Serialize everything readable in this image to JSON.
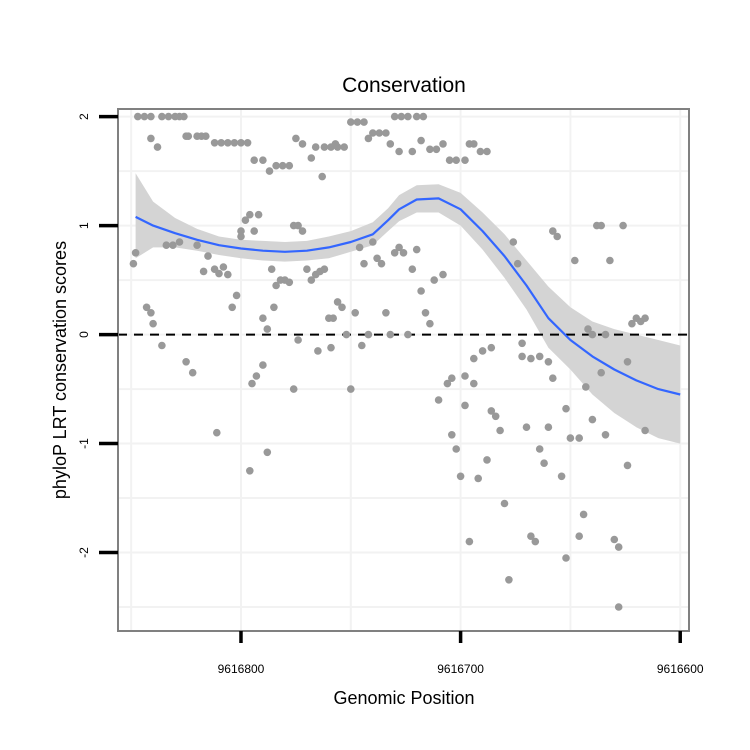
{
  "chart_data": {
    "type": "scatter",
    "title": "Conservation",
    "xlabel": "Genomic Position",
    "ylabel": "phyloP LRT conservation scores",
    "x_reversed": true,
    "xlim": [
      9616856,
      9616596
    ],
    "ylim": [
      -2.72,
      2.07
    ],
    "x_ticks": [
      9616800,
      9616700,
      9616600
    ],
    "x_tick_labels": [
      "9616800",
      "9616700",
      "9616600"
    ],
    "y_ticks": [
      2,
      1,
      0,
      -1,
      -2
    ],
    "y_tick_labels": [
      "2",
      "1",
      "0",
      "-1",
      "-2"
    ],
    "reference_line": {
      "y": 0,
      "style": "dashed"
    },
    "colors": {
      "points": "#999999",
      "smooth": "#3366ff",
      "ribbon": "#d4d4d4",
      "frame": "#808080",
      "grid": "#f2f2f2"
    },
    "series": [
      {
        "name": "scores",
        "kind": "points",
        "points": [
          [
            9616847,
            2.0
          ],
          [
            9616844,
            2.0
          ],
          [
            9616841,
            2.0
          ],
          [
            9616836,
            2.0
          ],
          [
            9616833,
            2.0
          ],
          [
            9616830,
            2.0
          ],
          [
            9616828,
            2.0
          ],
          [
            9616826,
            2.0
          ],
          [
            9616824,
            1.82
          ],
          [
            9616820,
            1.82
          ],
          [
            9616818,
            1.82
          ],
          [
            9616816,
            1.82
          ],
          [
            9616812,
            1.76
          ],
          [
            9616809,
            1.76
          ],
          [
            9616806,
            1.76
          ],
          [
            9616803,
            1.76
          ],
          [
            9616800,
            1.76
          ],
          [
            9616797,
            1.76
          ],
          [
            9616794,
            1.6
          ],
          [
            9616790,
            1.6
          ],
          [
            9616787,
            1.5
          ],
          [
            9616784,
            1.55
          ],
          [
            9616781,
            1.55
          ],
          [
            9616778,
            1.55
          ],
          [
            9616775,
            1.8
          ],
          [
            9616772,
            1.75
          ],
          [
            9616766,
            1.72
          ],
          [
            9616762,
            1.72
          ],
          [
            9616759,
            1.72
          ],
          [
            9616756,
            1.72
          ],
          [
            9616753,
            1.72
          ],
          [
            9616750,
            1.95
          ],
          [
            9616747,
            1.95
          ],
          [
            9616744,
            1.95
          ],
          [
            9616740,
            1.85
          ],
          [
            9616737,
            1.85
          ],
          [
            9616734,
            1.85
          ],
          [
            9616730,
            2.0
          ],
          [
            9616727,
            2.0
          ],
          [
            9616724,
            2.0
          ],
          [
            9616720,
            2.0
          ],
          [
            9616717,
            2.0
          ],
          [
            9616714,
            1.7
          ],
          [
            9616711,
            1.7
          ],
          [
            9616708,
            1.75
          ],
          [
            9616705,
            1.6
          ],
          [
            9616702,
            1.6
          ],
          [
            9616698,
            1.6
          ],
          [
            9616696,
            1.75
          ],
          [
            9616694,
            1.75
          ],
          [
            9616691,
            1.68
          ],
          [
            9616688,
            1.68
          ],
          [
            9616841,
            1.8
          ],
          [
            9616838,
            1.72
          ],
          [
            9616825,
            1.82
          ],
          [
            9616763,
            1.45
          ],
          [
            9616768,
            1.62
          ],
          [
            9616732,
            1.75
          ],
          [
            9616728,
            1.68
          ],
          [
            9616718,
            1.78
          ],
          [
            9616757,
            1.75
          ],
          [
            9616742,
            1.8
          ],
          [
            9616722,
            1.68
          ],
          [
            9616849,
            0.65
          ],
          [
            9616848,
            0.75
          ],
          [
            9616843,
            0.25
          ],
          [
            9616841,
            0.2
          ],
          [
            9616840,
            0.1
          ],
          [
            9616836,
            -0.1
          ],
          [
            9616834,
            0.82
          ],
          [
            9616831,
            0.82
          ],
          [
            9616828,
            0.85
          ],
          [
            9616825,
            -0.25
          ],
          [
            9616822,
            -0.35
          ],
          [
            9616820,
            0.82
          ],
          [
            9616817,
            0.58
          ],
          [
            9616815,
            0.72
          ],
          [
            9616812,
            0.6
          ],
          [
            9616810,
            0.56
          ],
          [
            9616808,
            0.62
          ],
          [
            9616806,
            0.55
          ],
          [
            9616804,
            0.25
          ],
          [
            9616802,
            0.36
          ],
          [
            9616800,
            0.9
          ],
          [
            9616798,
            1.05
          ],
          [
            9616796,
            1.1
          ],
          [
            9616794,
            0.95
          ],
          [
            9616792,
            1.1
          ],
          [
            9616790,
            0.15
          ],
          [
            9616788,
            0.05
          ],
          [
            9616786,
            0.6
          ],
          [
            9616784,
            0.45
          ],
          [
            9616782,
            0.5
          ],
          [
            9616780,
            0.5
          ],
          [
            9616778,
            0.48
          ],
          [
            9616776,
            1.0
          ],
          [
            9616774,
            1.0
          ],
          [
            9616772,
            0.95
          ],
          [
            9616770,
            0.6
          ],
          [
            9616768,
            0.5
          ],
          [
            9616766,
            0.55
          ],
          [
            9616764,
            0.58
          ],
          [
            9616762,
            0.6
          ],
          [
            9616760,
            0.15
          ],
          [
            9616758,
            0.15
          ],
          [
            9616756,
            0.3
          ],
          [
            9616754,
            0.25
          ],
          [
            9616752,
            0.0
          ],
          [
            9616750,
            -0.5
          ],
          [
            9616748,
            0.2
          ],
          [
            9616746,
            0.8
          ],
          [
            9616744,
            0.65
          ],
          [
            9616742,
            0.0
          ],
          [
            9616740,
            0.85
          ],
          [
            9616738,
            0.7
          ],
          [
            9616736,
            0.65
          ],
          [
            9616734,
            0.2
          ],
          [
            9616732,
            0.0
          ],
          [
            9616730,
            0.75
          ],
          [
            9616728,
            0.8
          ],
          [
            9616726,
            0.75
          ],
          [
            9616724,
            0.0
          ],
          [
            9616722,
            0.6
          ],
          [
            9616720,
            0.78
          ],
          [
            9616718,
            0.4
          ],
          [
            9616716,
            0.2
          ],
          [
            9616714,
            0.1
          ],
          [
            9616712,
            0.5
          ],
          [
            9616710,
            -0.6
          ],
          [
            9616708,
            0.55
          ],
          [
            9616706,
            -0.45
          ],
          [
            9616704,
            -0.4
          ],
          [
            9616702,
            -1.05
          ],
          [
            9616700,
            -1.3
          ],
          [
            9616698,
            -0.65
          ],
          [
            9616696,
            -1.9
          ],
          [
            9616694,
            -0.45
          ],
          [
            9616692,
            -1.32
          ],
          [
            9616690,
            -0.15
          ],
          [
            9616688,
            -1.15
          ],
          [
            9616686,
            -0.7
          ],
          [
            9616684,
            -0.75
          ],
          [
            9616682,
            -0.88
          ],
          [
            9616680,
            -1.55
          ],
          [
            9616678,
            -2.25
          ],
          [
            9616676,
            0.85
          ],
          [
            9616674,
            0.65
          ],
          [
            9616672,
            -0.2
          ],
          [
            9616670,
            -0.85
          ],
          [
            9616668,
            -1.85
          ],
          [
            9616666,
            -1.9
          ],
          [
            9616664,
            -1.05
          ],
          [
            9616662,
            -1.18
          ],
          [
            9616660,
            -0.85
          ],
          [
            9616658,
            0.95
          ],
          [
            9616656,
            0.9
          ],
          [
            9616654,
            -1.3
          ],
          [
            9616652,
            -0.68
          ],
          [
            9616650,
            -0.95
          ],
          [
            9616648,
            0.68
          ],
          [
            9616646,
            -1.85
          ],
          [
            9616644,
            -1.65
          ],
          [
            9616642,
            0.05
          ],
          [
            9616640,
            -0.78
          ],
          [
            9616638,
            1.0
          ],
          [
            9616636,
            1.0
          ],
          [
            9616634,
            -0.92
          ],
          [
            9616632,
            0.68
          ],
          [
            9616630,
            -1.88
          ],
          [
            9616628,
            -2.5
          ],
          [
            9616626,
            1.0
          ],
          [
            9616624,
            -1.2
          ],
          [
            9616622,
            0.1
          ],
          [
            9616620,
            0.15
          ],
          [
            9616618,
            0.12
          ],
          [
            9616616,
            -0.88
          ],
          [
            9616672,
            -0.08
          ],
          [
            9616668,
            -0.22
          ],
          [
            9616660,
            -0.25
          ],
          [
            9616652,
            -2.05
          ],
          [
            9616646,
            -0.95
          ],
          [
            9616640,
            0.0
          ],
          [
            9616634,
            0.0
          ],
          [
            9616628,
            -1.95
          ],
          [
            9616624,
            -0.25
          ],
          [
            9616616,
            0.15
          ],
          [
            9616811,
            -0.9
          ],
          [
            9616796,
            -1.25
          ],
          [
            9616788,
            -1.08
          ],
          [
            9616793,
            -0.38
          ],
          [
            9616790,
            -0.28
          ],
          [
            9616795,
            -0.45
          ],
          [
            9616776,
            -0.5
          ],
          [
            9616765,
            -0.15
          ],
          [
            9616759,
            -0.12
          ],
          [
            9616745,
            -0.1
          ],
          [
            9616704,
            -0.92
          ],
          [
            9616698,
            -0.38
          ],
          [
            9616694,
            -0.22
          ],
          [
            9616686,
            -0.12
          ],
          [
            9616664,
            -0.2
          ],
          [
            9616658,
            -0.4
          ],
          [
            9616643,
            -0.48
          ],
          [
            9616636,
            -0.35
          ],
          [
            9616785,
            0.25
          ],
          [
            9616800,
            0.95
          ],
          [
            9616774,
            -0.05
          ]
        ]
      },
      {
        "name": "loess smooth",
        "kind": "line",
        "x": [
          9616848,
          9616840,
          9616830,
          9616820,
          9616810,
          9616800,
          9616790,
          9616780,
          9616770,
          9616760,
          9616750,
          9616740,
          9616733,
          9616728,
          9616720,
          9616710,
          9616700,
          9616690,
          9616680,
          9616670,
          9616660,
          9616650,
          9616640,
          9616630,
          9616620,
          9616610,
          9616600
        ],
        "y": [
          1.08,
          1.0,
          0.93,
          0.87,
          0.82,
          0.79,
          0.77,
          0.76,
          0.77,
          0.8,
          0.85,
          0.92,
          1.05,
          1.15,
          1.24,
          1.25,
          1.15,
          0.95,
          0.72,
          0.45,
          0.15,
          -0.05,
          -0.2,
          -0.32,
          -0.42,
          -0.5,
          -0.55
        ],
        "ribbon_low": [
          0.7,
          0.8,
          0.8,
          0.77,
          0.73,
          0.7,
          0.68,
          0.67,
          0.68,
          0.7,
          0.76,
          0.82,
          0.95,
          1.04,
          1.12,
          1.12,
          1.0,
          0.78,
          0.52,
          0.23,
          -0.12,
          -0.32,
          -0.55,
          -0.72,
          -0.85,
          -0.95,
          -1.0
        ],
        "ribbon_high": [
          1.48,
          1.22,
          1.07,
          0.97,
          0.9,
          0.87,
          0.86,
          0.85,
          0.86,
          0.9,
          0.95,
          1.03,
          1.16,
          1.28,
          1.37,
          1.38,
          1.3,
          1.12,
          0.92,
          0.68,
          0.44,
          0.25,
          0.12,
          0.05,
          0.0,
          -0.05,
          -0.1
        ]
      }
    ]
  }
}
